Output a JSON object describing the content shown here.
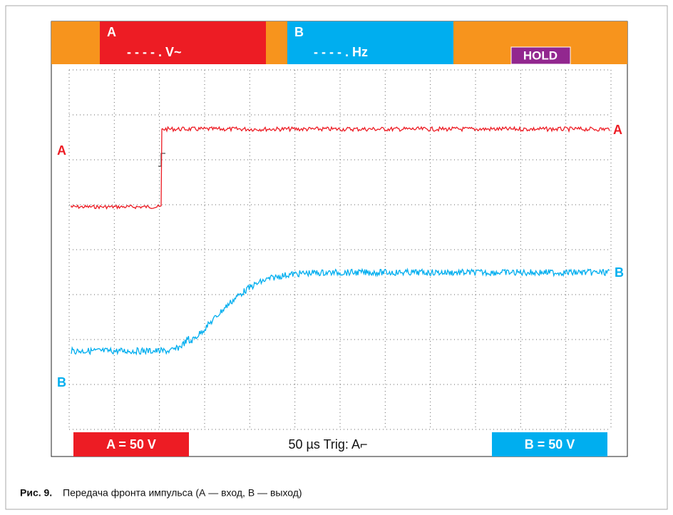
{
  "header": {
    "a_label": "A",
    "a_reading": "- - - - .  V~",
    "b_label": "B",
    "b_reading": "- - - - .  Hz",
    "hold": "HOLD"
  },
  "traces": {
    "a_left": "A",
    "a_right": "A",
    "b_left": "B",
    "b_right": "B"
  },
  "footer": {
    "a_scale": "A = 50 V",
    "timebase": "50 µs Trig: A⌐",
    "b_scale": "B = 50 V"
  },
  "caption": {
    "number": "Рис. 9.",
    "text": "Передача фронта импульса (А — вход, В — выход)"
  }
}
